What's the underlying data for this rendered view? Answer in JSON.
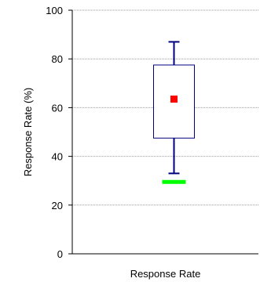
{
  "chart_data": {
    "type": "box",
    "title": "",
    "xlabel": "Response Rate",
    "ylabel": "Response Rate (%)",
    "ylim": [
      0,
      100
    ],
    "yticks": [
      0,
      20,
      40,
      60,
      80,
      100
    ],
    "grid": true,
    "categories": [
      "Response Rate"
    ],
    "boxes": [
      {
        "whisker_low": 33,
        "q1": 47.5,
        "q3": 77.5,
        "whisker_high": 87,
        "mean": 63.5,
        "marker_low": 29.5
      }
    ],
    "colors": {
      "box": "#000080",
      "mean": "#ff0000",
      "marker_low": "#00ff00",
      "grid": "#999999",
      "axis": "#000000"
    }
  }
}
